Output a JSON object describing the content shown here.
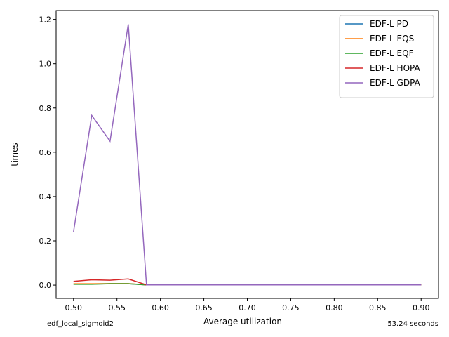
{
  "chart_data": {
    "type": "line",
    "title": "",
    "xlabel": "Average utilization",
    "ylabel": "times",
    "xlim": [
      0.48,
      0.92
    ],
    "ylim": [
      -0.06,
      1.24
    ],
    "x_ticks": [
      0.5,
      0.55,
      0.6,
      0.65,
      0.7,
      0.75,
      0.8,
      0.85,
      0.9
    ],
    "x_tick_labels": [
      "0.50",
      "0.55",
      "0.60",
      "0.65",
      "0.70",
      "0.75",
      "0.80",
      "0.85",
      "0.90"
    ],
    "y_ticks": [
      0.0,
      0.2,
      0.4,
      0.6,
      0.8,
      1.0,
      1.2
    ],
    "y_tick_labels": [
      "0.0",
      "0.2",
      "0.4",
      "0.6",
      "0.8",
      "1.0",
      "1.2"
    ],
    "grid": false,
    "legend_position": "top-right",
    "x": [
      0.5,
      0.521,
      0.542,
      0.563,
      0.584,
      0.605,
      0.626,
      0.647,
      0.668,
      0.689,
      0.71,
      0.731,
      0.752,
      0.773,
      0.794,
      0.815,
      0.836,
      0.857,
      0.878,
      0.9
    ],
    "series": [
      {
        "name": "EDF-L PD",
        "color": "#1f77b4",
        "values": [
          0.005,
          0.005,
          0.006,
          0.006,
          0.001,
          0.001,
          0.001,
          0.001,
          0.001,
          0.001,
          0.001,
          0.001,
          0.001,
          0.001,
          0.001,
          0.001,
          0.001,
          0.001,
          0.001,
          0.001
        ]
      },
      {
        "name": "EDF-L EQS",
        "color": "#ff7f0e",
        "values": [
          0.006,
          0.006,
          0.007,
          0.007,
          0.001,
          0.001,
          0.001,
          0.001,
          0.001,
          0.001,
          0.001,
          0.001,
          0.001,
          0.001,
          0.001,
          0.001,
          0.001,
          0.001,
          0.001,
          0.001
        ]
      },
      {
        "name": "EDF-L EQF",
        "color": "#2ca02c",
        "values": [
          0.004,
          0.004,
          0.006,
          0.006,
          0.001,
          0.001,
          0.001,
          0.001,
          0.001,
          0.001,
          0.001,
          0.001,
          0.001,
          0.001,
          0.001,
          0.001,
          0.001,
          0.001,
          0.001,
          0.001
        ]
      },
      {
        "name": "EDF-L HOPA",
        "color": "#d62728",
        "values": [
          0.017,
          0.024,
          0.022,
          0.028,
          0.001,
          0.001,
          0.001,
          0.001,
          0.001,
          0.001,
          0.001,
          0.001,
          0.001,
          0.001,
          0.001,
          0.001,
          0.001,
          0.001,
          0.001,
          0.001
        ]
      },
      {
        "name": "EDF-L GDPA",
        "color": "#9467bd",
        "values": [
          0.24,
          0.766,
          0.65,
          1.178,
          0.001,
          0.001,
          0.001,
          0.001,
          0.001,
          0.001,
          0.001,
          0.001,
          0.001,
          0.001,
          0.001,
          0.001,
          0.001,
          0.001,
          0.001,
          0.001
        ]
      }
    ]
  },
  "footer": {
    "left": "edf_local_sigmoid2",
    "right": "53.24 seconds"
  }
}
